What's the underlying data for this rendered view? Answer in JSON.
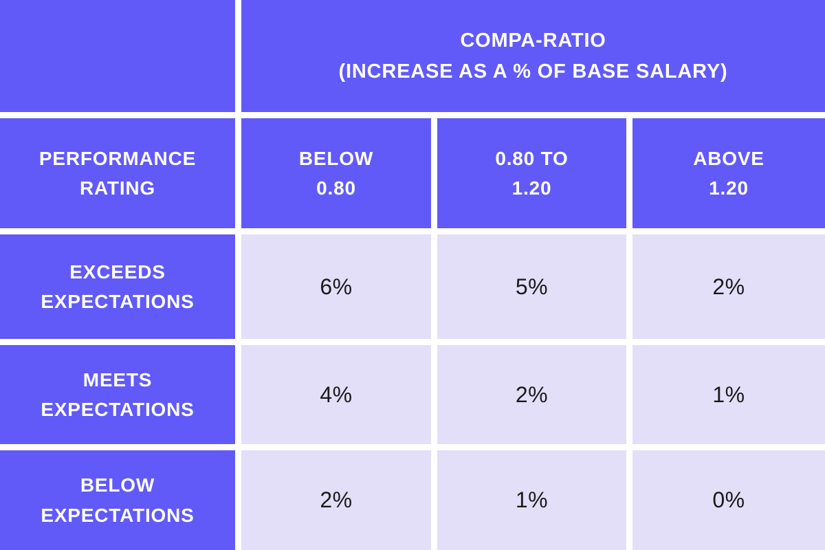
{
  "table": {
    "top_header": {
      "line1": "COMPA-RATIO",
      "line2": "(INCREASE AS A % OF BASE SALARY)"
    },
    "row_header_title": {
      "line1": "PERFORMANCE",
      "line2": "RATING"
    },
    "columns": [
      {
        "line1": "BELOW",
        "line2": "0.80"
      },
      {
        "line1": "0.80 TO",
        "line2": "1.20"
      },
      {
        "line1": "ABOVE",
        "line2": "1.20"
      }
    ],
    "rows": [
      {
        "label_line1": "EXCEEDS",
        "label_line2": "EXPECTATIONS",
        "values": [
          "6%",
          "5%",
          "2%"
        ]
      },
      {
        "label_line1": "MEETS",
        "label_line2": "EXPECTATIONS",
        "values": [
          "4%",
          "2%",
          "1%"
        ]
      },
      {
        "label_line1": "BELOW",
        "label_line2": "EXPECTATIONS",
        "values": [
          "2%",
          "1%",
          "0%"
        ]
      }
    ],
    "colors": {
      "header_bg": "#615AF8",
      "cell_bg": "#E3DFF8",
      "header_text": "#FFFFFF",
      "cell_text": "#1A1A1A",
      "grid_gap": "#FFFFFF"
    }
  },
  "chart_data": {
    "type": "table",
    "title": "COMPA-RATIO (INCREASE AS A % OF BASE SALARY)",
    "row_axis_label": "PERFORMANCE RATING",
    "columns": [
      "BELOW 0.80",
      "0.80 TO 1.20",
      "ABOVE 1.20"
    ],
    "rows": [
      "EXCEEDS EXPECTATIONS",
      "MEETS EXPECTATIONS",
      "BELOW EXPECTATIONS"
    ],
    "values": [
      [
        "6%",
        "5%",
        "2%"
      ],
      [
        "4%",
        "2%",
        "1%"
      ],
      [
        "2%",
        "1%",
        "0%"
      ]
    ]
  }
}
